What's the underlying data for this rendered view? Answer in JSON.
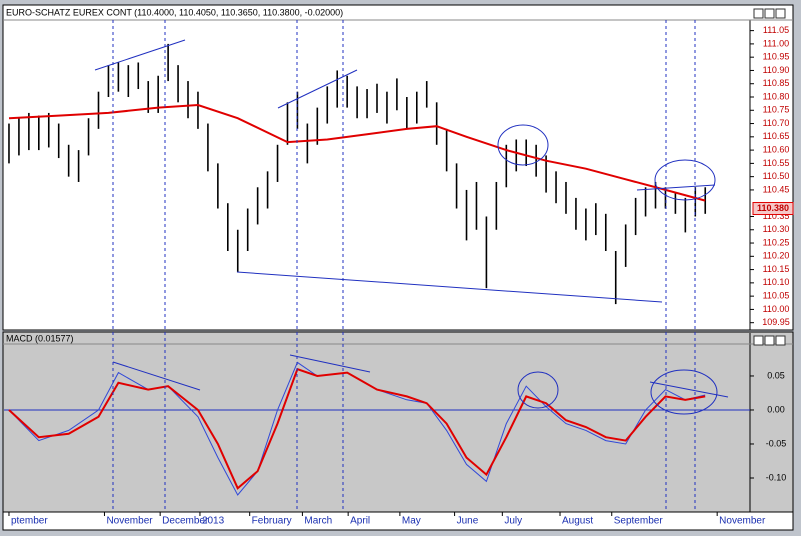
{
  "chart_data": [
    {
      "type": "hilo",
      "title": "EURO-SCHATZ EUREX CONT (110.4000, 110.4050, 110.3650, 110.3800, -0.02000)",
      "color": "#000000",
      "high": [
        110.7,
        110.72,
        110.74,
        110.73,
        110.74,
        110.7,
        110.62,
        110.6,
        110.72,
        110.82,
        110.92,
        110.93,
        110.92,
        110.93,
        110.86,
        110.88,
        111.0,
        110.92,
        110.86,
        110.82,
        110.7,
        110.55,
        110.4,
        110.3,
        110.38,
        110.46,
        110.52,
        110.62,
        110.78,
        110.82,
        110.7,
        110.76,
        110.84,
        110.9,
        110.88,
        110.84,
        110.83,
        110.85,
        110.82,
        110.87,
        110.8,
        110.82,
        110.86,
        110.78,
        110.68,
        110.55,
        110.45,
        110.48,
        110.35,
        110.48,
        110.62,
        110.64,
        110.64,
        110.62,
        110.58,
        110.52,
        110.48,
        110.42,
        110.38,
        110.4,
        110.36,
        110.22,
        110.32,
        110.42,
        110.46,
        110.48,
        110.46,
        110.44,
        110.42,
        110.46,
        110.46
      ],
      "low": [
        110.55,
        110.58,
        110.6,
        110.6,
        110.61,
        110.57,
        110.5,
        110.48,
        110.58,
        110.68,
        110.8,
        110.82,
        110.8,
        110.83,
        110.74,
        110.74,
        110.86,
        110.78,
        110.72,
        110.68,
        110.52,
        110.38,
        110.22,
        110.14,
        110.22,
        110.32,
        110.38,
        110.48,
        110.62,
        110.68,
        110.55,
        110.62,
        110.7,
        110.76,
        110.76,
        110.72,
        110.72,
        110.74,
        110.7,
        110.75,
        110.68,
        110.7,
        110.76,
        110.62,
        110.52,
        110.38,
        110.26,
        110.3,
        110.08,
        110.3,
        110.46,
        110.52,
        110.54,
        110.5,
        110.44,
        110.4,
        110.36,
        110.3,
        110.26,
        110.28,
        110.22,
        110.02,
        110.16,
        110.28,
        110.35,
        110.38,
        110.38,
        110.36,
        110.29,
        110.35,
        110.36
      ],
      "overlay": {
        "color": "#e00000",
        "x": [
          0,
          5,
          10,
          15,
          19,
          23,
          28,
          32,
          36,
          40,
          43,
          46,
          50,
          54,
          58,
          62,
          66,
          70
        ],
        "values": [
          110.72,
          110.73,
          110.74,
          110.76,
          110.77,
          110.72,
          110.63,
          110.64,
          110.66,
          110.68,
          110.69,
          110.65,
          110.6,
          110.56,
          110.53,
          110.49,
          110.45,
          110.41
        ]
      },
      "xlim": [
        -0.5,
        74.5
      ],
      "ylim": [
        109.93,
        111.09
      ],
      "yticks": [
        {
          "value": 109.95,
          "label": "109.95"
        },
        {
          "value": 110.0,
          "label": "110.00"
        },
        {
          "value": 110.05,
          "label": "110.05"
        },
        {
          "value": 110.1,
          "label": "110.10"
        },
        {
          "value": 110.15,
          "label": "110.15"
        },
        {
          "value": 110.2,
          "label": "110.20"
        },
        {
          "value": 110.25,
          "label": "110.25"
        },
        {
          "value": 110.3,
          "label": "110.30"
        },
        {
          "value": 110.35,
          "label": "110.35"
        },
        {
          "value": 110.45,
          "label": "110.45"
        },
        {
          "value": 110.5,
          "label": "110.50"
        },
        {
          "value": 110.55,
          "label": "110.55"
        },
        {
          "value": 110.6,
          "label": "110.60"
        },
        {
          "value": 110.65,
          "label": "110.65"
        },
        {
          "value": 110.7,
          "label": "110.70"
        },
        {
          "value": 110.75,
          "label": "110.75"
        },
        {
          "value": 110.8,
          "label": "110.80"
        },
        {
          "value": 110.85,
          "label": "110.85"
        },
        {
          "value": 110.9,
          "label": "110.90"
        },
        {
          "value": 110.95,
          "label": "110.95"
        },
        {
          "value": 111.0,
          "label": "111.00"
        },
        {
          "value": 111.05,
          "label": "111.05"
        }
      ],
      "tick_color": "#c00000",
      "last_label": {
        "value": 110.38,
        "label": "110.380"
      }
    },
    {
      "type": "line",
      "title": "MACD (0.01577)",
      "series": [
        {
          "color": "#3048d8",
          "x": [
            0,
            3,
            6,
            9,
            11,
            14,
            16,
            19,
            21,
            23,
            25,
            27,
            29,
            31,
            34,
            37,
            40,
            42,
            44,
            46,
            48,
            50,
            52,
            54,
            56,
            58,
            60,
            62,
            64,
            66,
            68,
            70
          ],
          "values": [
            0.0,
            -0.045,
            -0.03,
            0.0,
            0.055,
            0.03,
            0.035,
            -0.01,
            -0.07,
            -0.125,
            -0.09,
            0.0,
            0.07,
            0.05,
            0.055,
            0.03,
            0.015,
            0.01,
            -0.03,
            -0.08,
            -0.105,
            -0.02,
            0.035,
            0.005,
            -0.02,
            -0.03,
            -0.045,
            -0.05,
            0.0,
            0.03,
            0.015,
            0.022
          ]
        },
        {
          "color": "#e00000",
          "x": [
            0,
            3,
            6,
            9,
            11,
            14,
            16,
            19,
            21,
            23,
            25,
            27,
            29,
            31,
            34,
            37,
            40,
            42,
            44,
            46,
            48,
            50,
            52,
            54,
            56,
            58,
            60,
            62,
            64,
            66,
            68,
            70
          ],
          "values": [
            0.0,
            -0.04,
            -0.035,
            -0.01,
            0.04,
            0.03,
            0.035,
            0.0,
            -0.05,
            -0.115,
            -0.09,
            -0.02,
            0.06,
            0.05,
            0.055,
            0.03,
            0.02,
            0.01,
            -0.02,
            -0.07,
            -0.095,
            -0.04,
            0.02,
            0.01,
            -0.015,
            -0.025,
            -0.04,
            -0.045,
            -0.01,
            0.02,
            0.015,
            0.02
          ]
        }
      ],
      "xlim": [
        -0.5,
        74.5
      ],
      "ylim": [
        -0.15,
        0.097
      ],
      "yticks": [
        {
          "value": 0.05,
          "label": "0.05"
        },
        {
          "value": 0.0,
          "label": "0.00"
        },
        {
          "value": -0.05,
          "label": "-0.05"
        },
        {
          "value": -0.1,
          "label": "-0.10"
        }
      ],
      "zero_line": true,
      "tick_color": "#000000",
      "xticks": [
        {
          "value": 0,
          "label": "ptember"
        },
        {
          "value": 9.6,
          "label": "November"
        },
        {
          "value": 15.2,
          "label": "December"
        },
        {
          "value": 19.2,
          "label": "2013"
        },
        {
          "value": 24.2,
          "label": "February"
        },
        {
          "value": 29.5,
          "label": "March"
        },
        {
          "value": 34.1,
          "label": "April"
        },
        {
          "value": 39.3,
          "label": "May"
        },
        {
          "value": 44.8,
          "label": "June"
        },
        {
          "value": 49.6,
          "label": "July"
        },
        {
          "value": 55.4,
          "label": "August"
        },
        {
          "value": 60.6,
          "label": "September"
        },
        {
          "value": 71.2,
          "label": "November"
        }
      ],
      "xtick_color": "#1a2fb0"
    }
  ]
}
